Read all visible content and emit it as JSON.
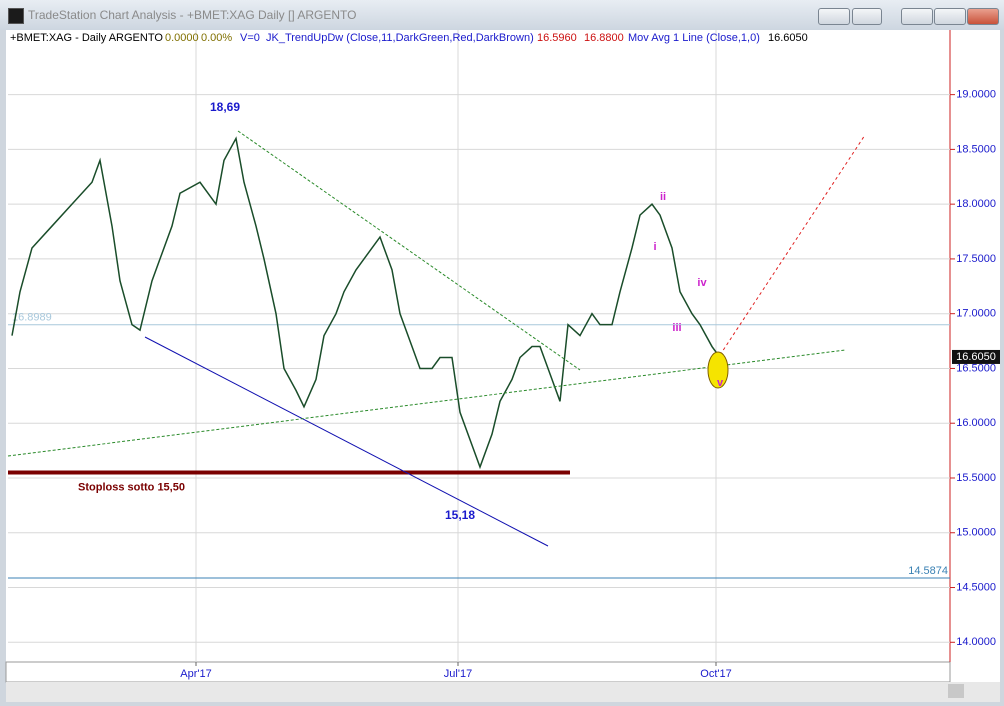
{
  "window": {
    "title": "TradeStation Chart Analysis - +BMET:XAG Daily [] ARGENTO"
  },
  "status_line": {
    "symbol": "+BMET:XAG - Daily  ARGENTO",
    "change": "0.0000",
    "change_pct": "0.00%",
    "volume": "V=0",
    "indicator": "JK_TrendUpDw (Close,11,DarkGreen,Red,DarkBrown)",
    "indicator_value_1": "16.5960",
    "indicator_value_2": "16.8800",
    "study": "Mov Avg 1 Line (Close,1,0)",
    "study_value": "16.6050"
  },
  "annotations": {
    "high": "18,69",
    "low": "15,18",
    "wave_1": "i",
    "wave_2": "ii",
    "wave_3": "iii",
    "wave_4": "iv",
    "wave_5": "v"
  },
  "chart_data": {
    "type": "line",
    "x": [
      1,
      3,
      6,
      11,
      16,
      21,
      23,
      26,
      28,
      31,
      33,
      36,
      38,
      41,
      43,
      48,
      52,
      54,
      57,
      59,
      62,
      64,
      67,
      69,
      72,
      74,
      77,
      79,
      82,
      84,
      87,
      89,
      93,
      96,
      98,
      101,
      103,
      106,
      108,
      111,
      113,
      116,
      118,
      121,
      123,
      126,
      128,
      131,
      133,
      136,
      138,
      140,
      143,
      146,
      148,
      151,
      153,
      156,
      158,
      161,
      163,
      166,
      168,
      171,
      173,
      176,
      178
    ],
    "series": [
      {
        "name": "+BMET:XAG",
        "color": "#1a4d2a",
        "values": [
          16.8,
          17.2,
          17.6,
          17.8,
          18.0,
          18.2,
          18.4,
          17.8,
          17.3,
          16.9,
          16.85,
          17.3,
          17.5,
          17.8,
          18.1,
          18.2,
          18.0,
          18.4,
          18.6,
          18.2,
          17.8,
          17.5,
          17.0,
          16.5,
          16.3,
          16.15,
          16.4,
          16.8,
          17.0,
          17.2,
          17.4,
          17.5,
          17.7,
          17.4,
          17.0,
          16.7,
          16.5,
          16.5,
          16.6,
          16.6,
          16.1,
          15.8,
          15.6,
          15.9,
          16.2,
          16.4,
          16.6,
          16.7,
          16.7,
          16.4,
          16.2,
          16.9,
          16.8,
          17.0,
          16.9,
          16.9,
          17.2,
          17.6,
          17.9,
          18.0,
          17.9,
          17.6,
          17.2,
          17.0,
          16.9,
          16.7,
          16.6
        ]
      }
    ],
    "xlim": [
      0,
      235.5
    ],
    "xticks": [
      {
        "value": 47,
        "label": "Apr'17"
      },
      {
        "value": 112.5,
        "label": "Jul'17"
      },
      {
        "value": 177,
        "label": "Oct'17"
      }
    ],
    "ylim": [
      13.82,
      19.59
    ],
    "yticks": [
      {
        "value": 14,
        "label": "14.0000"
      },
      {
        "value": 14.5,
        "label": "14.5000"
      },
      {
        "value": 15,
        "label": "15.0000"
      },
      {
        "value": 15.5,
        "label": "15.5000"
      },
      {
        "value": 16,
        "label": "16.0000"
      },
      {
        "value": 16.5,
        "label": "16.5000"
      },
      {
        "value": 17,
        "label": "17.0000"
      },
      {
        "value": 17.5,
        "label": "17.5000"
      },
      {
        "value": 18,
        "label": "18.0000"
      },
      {
        "value": 18.5,
        "label": "18.5000"
      },
      {
        "value": 19,
        "label": "19.0000"
      }
    ],
    "grid": true,
    "last_price": {
      "value": 16.605,
      "label": "16.6050"
    },
    "hlines": [
      {
        "value": 16.8989,
        "color": "#a8c8dc"
      },
      {
        "value": 14.5874,
        "color": "#3b82b4"
      }
    ],
    "stoploss": {
      "value": 15.55,
      "text": "Stoploss  sotto 15,50",
      "color": "#7a0000"
    }
  }
}
